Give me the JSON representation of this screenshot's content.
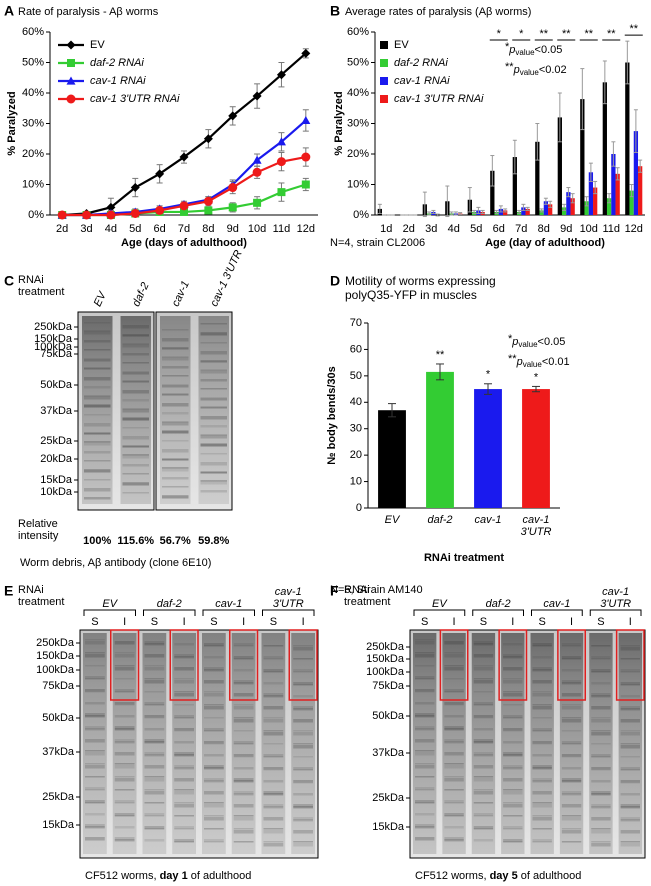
{
  "chart_data": [
    {
      "type": "line",
      "panel": "A",
      "title": "Rate of paralysis - Aβ worms",
      "x_label": "Age (days of adulthood)",
      "y_label": "% Paralyzed",
      "categories": [
        "2d",
        "3d",
        "4d",
        "5d",
        "6d",
        "7d",
        "8d",
        "9d",
        "10d",
        "11d",
        "12d"
      ],
      "ylim": [
        0,
        60
      ],
      "yticks": [
        {
          "value": 0,
          "label": "0%"
        },
        {
          "value": 10,
          "label": "10%"
        },
        {
          "value": 20,
          "label": "20%"
        },
        {
          "value": 30,
          "label": "30%"
        },
        {
          "value": 40,
          "label": "40%"
        },
        {
          "value": 50,
          "label": "50%"
        },
        {
          "value": 60,
          "label": "60%"
        }
      ],
      "grid": false,
      "legend": "upper left",
      "series": [
        {
          "name": "EV",
          "color": "#000000",
          "marker": "diamond",
          "values": [
            0,
            0.5,
            2.5,
            9,
            13.5,
            19,
            25,
            32.5,
            39,
            46,
            53
          ],
          "errors": [
            0,
            0.5,
            3,
            3,
            3,
            2,
            3,
            3,
            4,
            4,
            1.5
          ]
        },
        {
          "name": "daf-2 RNAi",
          "color": "#33cc33",
          "marker": "square",
          "values": [
            0,
            0,
            0,
            0.5,
            1,
            1,
            1.5,
            2.5,
            4,
            7.5,
            10
          ],
          "errors": [
            0,
            0,
            0.5,
            1,
            1,
            1,
            1,
            1.5,
            2,
            3,
            2
          ]
        },
        {
          "name": "cav-1 RNAi",
          "color": "#1a1aee",
          "marker": "triangle",
          "values": [
            0,
            0,
            0.5,
            1,
            2,
            3.5,
            5,
            10,
            18,
            24,
            31
          ],
          "errors": [
            0,
            0,
            1,
            1,
            1,
            1,
            1,
            1.5,
            2,
            3,
            3.5
          ]
        },
        {
          "name": "cav-1 3'UTR RNAi",
          "color": "#ee1a1a",
          "marker": "circle",
          "values": [
            0,
            0,
            0,
            0.5,
            1.5,
            3,
            4.5,
            9,
            14,
            17.5,
            19
          ],
          "errors": [
            0,
            0,
            0.5,
            0.5,
            1,
            1,
            1.5,
            2,
            2,
            3,
            3
          ]
        }
      ]
    },
    {
      "type": "bar",
      "panel": "B",
      "title": "Average rates of paralysis (Aβ worms)",
      "x_label": "Age (day of adulthood)",
      "y_label": "% Paralyzed",
      "footnote": "N=4, strain CL2006",
      "categories": [
        "1d",
        "2d",
        "3d",
        "4d",
        "5d",
        "6d",
        "7d",
        "8d",
        "9d",
        "10d",
        "11d",
        "12d"
      ],
      "ylim": [
        0,
        60
      ],
      "yticks": [
        {
          "value": 0,
          "label": "0%"
        },
        {
          "value": 10,
          "label": "10%"
        },
        {
          "value": 20,
          "label": "20%"
        },
        {
          "value": 30,
          "label": "30%"
        },
        {
          "value": 40,
          "label": "40%"
        },
        {
          "value": 50,
          "label": "50%"
        },
        {
          "value": 60,
          "label": "60%"
        }
      ],
      "grid": false,
      "legend": "upper left",
      "series": [
        {
          "name": "EV",
          "color": "#000000",
          "values": [
            2,
            0,
            3.5,
            4.5,
            5,
            14.5,
            19,
            24,
            32,
            38,
            43.5,
            50
          ],
          "errors": [
            1.5,
            0,
            4,
            5,
            4,
            5,
            5.5,
            6,
            8,
            10,
            7,
            7
          ]
        },
        {
          "name": "daf-2 RNAi",
          "color": "#33cc33",
          "values": [
            0,
            0,
            0.5,
            0.5,
            1,
            1,
            1,
            1.5,
            2.5,
            4.5,
            5.5,
            8
          ],
          "errors": [
            0,
            0,
            0.5,
            0.5,
            0.5,
            0.5,
            0.5,
            0.5,
            1,
            1.5,
            1.5,
            2
          ]
        },
        {
          "name": "cav-1 RNAi",
          "color": "#1a1aee",
          "values": [
            0,
            0,
            1,
            0.5,
            1.5,
            2,
            2.5,
            4.5,
            7.5,
            14,
            20,
            27.5
          ],
          "errors": [
            0,
            0,
            0.5,
            0.5,
            1,
            1,
            1,
            1,
            1.5,
            3,
            4,
            7
          ]
        },
        {
          "name": "cav-1 3'UTR RNAi",
          "color": "#ee1a1a",
          "values": [
            0,
            0,
            0,
            0.5,
            1,
            1.5,
            2,
            3.5,
            5.5,
            9,
            13.5,
            16
          ],
          "errors": [
            0,
            0,
            0.3,
            0.3,
            0.5,
            0.5,
            0.5,
            1,
            1.5,
            2,
            2,
            2
          ]
        }
      ],
      "significance": [
        null,
        null,
        null,
        null,
        null,
        "*",
        "*",
        "**",
        "**",
        "**",
        "**",
        "**"
      ],
      "annotations": [
        {
          "stars": "*",
          "p": "p",
          "sub": "value",
          "rest": "<0.05"
        },
        {
          "stars": "**",
          "p": "p",
          "sub": "value",
          "rest": "<0.02"
        }
      ]
    },
    {
      "type": "bar",
      "panel": "D",
      "title": "Motility of worms expressing polyQ35-YFP in muscles",
      "x_label": "RNAi treatment",
      "y_label": "№ body bends/30s",
      "footnote": "N=6, Strain AM140",
      "categories": [
        "EV",
        "daf-2",
        "cav-1",
        "cav-1 3'UTR"
      ],
      "values": [
        37,
        51.5,
        45,
        45
      ],
      "errors": [
        2.5,
        3,
        2,
        1
      ],
      "colors": [
        "#000000",
        "#33cc33",
        "#1a1aee",
        "#ee1a1a"
      ],
      "ylim": [
        0,
        70
      ],
      "yticks": [
        0,
        10,
        20,
        30,
        40,
        50,
        60,
        70
      ],
      "grid": false,
      "significance": [
        null,
        "**",
        "*",
        "*"
      ],
      "annotations": [
        {
          "stars": "*",
          "p": "p",
          "sub": "value",
          "rest": "<0.05"
        },
        {
          "stars": "**",
          "p": "p",
          "sub": "value",
          "rest": "<0.01"
        }
      ]
    }
  ],
  "blots": [
    {
      "panel": "C",
      "label": "RNAi treatment",
      "lanes": [
        "EV",
        "daf-2",
        "cav-1",
        "cav-1 3'UTR"
      ],
      "markers": [
        "250kDa",
        "150kDa",
        "100kDa",
        "75kDa",
        "50kDa",
        "37kDa",
        "25kDa",
        "20kDa",
        "15kDa",
        "10kDa"
      ],
      "intensity_label": "Relative intensity",
      "intensities": [
        "100%",
        "115.6%",
        "56.7%",
        "59.8%"
      ],
      "caption": "Worm debris, Aβ antibody (clone 6E10)"
    },
    {
      "panel": "E",
      "label": "RNAi treatment",
      "groups": [
        "EV",
        "daf-2",
        "cav-1",
        "cav-1 3'UTR"
      ],
      "lanes": [
        "S",
        "I"
      ],
      "markers": [
        "250kDa",
        "150kDa",
        "100kDa",
        "75kDa",
        "50kDa",
        "37kDa",
        "25kDa",
        "15kDa"
      ],
      "caption": [
        "CF512 worms, ",
        "day 1",
        " of adulthood"
      ]
    },
    {
      "panel": "F",
      "label": "RNAi treatment",
      "groups": [
        "EV",
        "daf-2",
        "cav-1",
        "cav-1 3'UTR"
      ],
      "lanes": [
        "S",
        "I"
      ],
      "markers": [
        "250kDa",
        "150kDa",
        "100kDa",
        "75kDa",
        "50kDa",
        "37kDa",
        "25kDa",
        "15kDa"
      ],
      "caption": [
        "CF512 worms, ",
        "day 5",
        " of adulthood"
      ]
    }
  ]
}
